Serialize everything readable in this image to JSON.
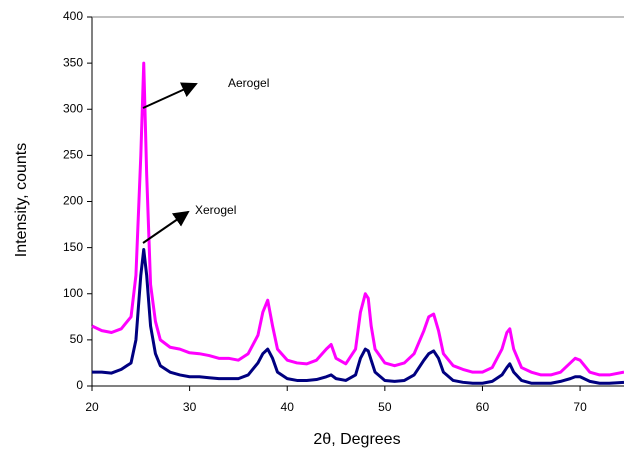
{
  "chart_data": {
    "type": "line",
    "x_label": "2θ,  Degrees",
    "y_label": "Intensity, counts",
    "annotations": [
      "Aerogel",
      "Xerogel"
    ],
    "x": [
      20,
      21,
      22,
      23,
      24,
      24.5,
      25,
      25.3,
      25.6,
      26,
      26.5,
      27,
      28,
      29,
      30,
      31,
      32,
      33,
      34,
      35,
      36,
      37,
      37.5,
      38,
      38.5,
      39,
      40,
      41,
      42,
      43,
      44,
      44.5,
      45,
      46,
      47,
      47.5,
      48,
      48.3,
      48.6,
      49,
      50,
      51,
      52,
      53,
      54,
      54.5,
      55,
      55.5,
      56,
      57,
      58,
      59,
      60,
      61,
      62,
      62.5,
      62.8,
      63.2,
      64,
      65,
      66,
      67,
      68,
      69,
      69.5,
      70,
      71,
      72,
      73,
      74.5
    ],
    "series": [
      {
        "name": "Aerogel",
        "color": "#ff00ff",
        "values": [
          65,
          60,
          58,
          62,
          75,
          120,
          250,
          350,
          230,
          110,
          70,
          50,
          42,
          40,
          36,
          35,
          33,
          30,
          30,
          28,
          35,
          55,
          80,
          93,
          65,
          40,
          28,
          25,
          24,
          28,
          40,
          45,
          30,
          24,
          40,
          80,
          100,
          95,
          65,
          40,
          25,
          22,
          25,
          35,
          60,
          75,
          78,
          60,
          35,
          22,
          18,
          15,
          15,
          20,
          40,
          58,
          62,
          40,
          20,
          15,
          12,
          12,
          15,
          25,
          30,
          28,
          15,
          12,
          12,
          15
        ]
      },
      {
        "name": "Xerogel",
        "color": "#000080",
        "values": [
          15,
          15,
          14,
          18,
          25,
          50,
          120,
          148,
          120,
          65,
          35,
          22,
          15,
          12,
          10,
          10,
          9,
          8,
          8,
          8,
          12,
          25,
          35,
          40,
          30,
          15,
          8,
          6,
          6,
          7,
          10,
          12,
          8,
          6,
          12,
          30,
          40,
          38,
          28,
          15,
          6,
          5,
          6,
          12,
          28,
          35,
          38,
          30,
          15,
          6,
          4,
          3,
          3,
          5,
          12,
          20,
          24,
          15,
          6,
          3,
          3,
          3,
          5,
          8,
          10,
          10,
          5,
          3,
          3,
          4
        ]
      }
    ],
    "xlim": [
      20,
      74.5
    ],
    "xticks": [
      20,
      30,
      40,
      50,
      60,
      70
    ],
    "ylim": [
      0,
      400
    ],
    "yticks": [
      0,
      50,
      100,
      150,
      200,
      250,
      300,
      350,
      400
    ],
    "grid": false
  }
}
